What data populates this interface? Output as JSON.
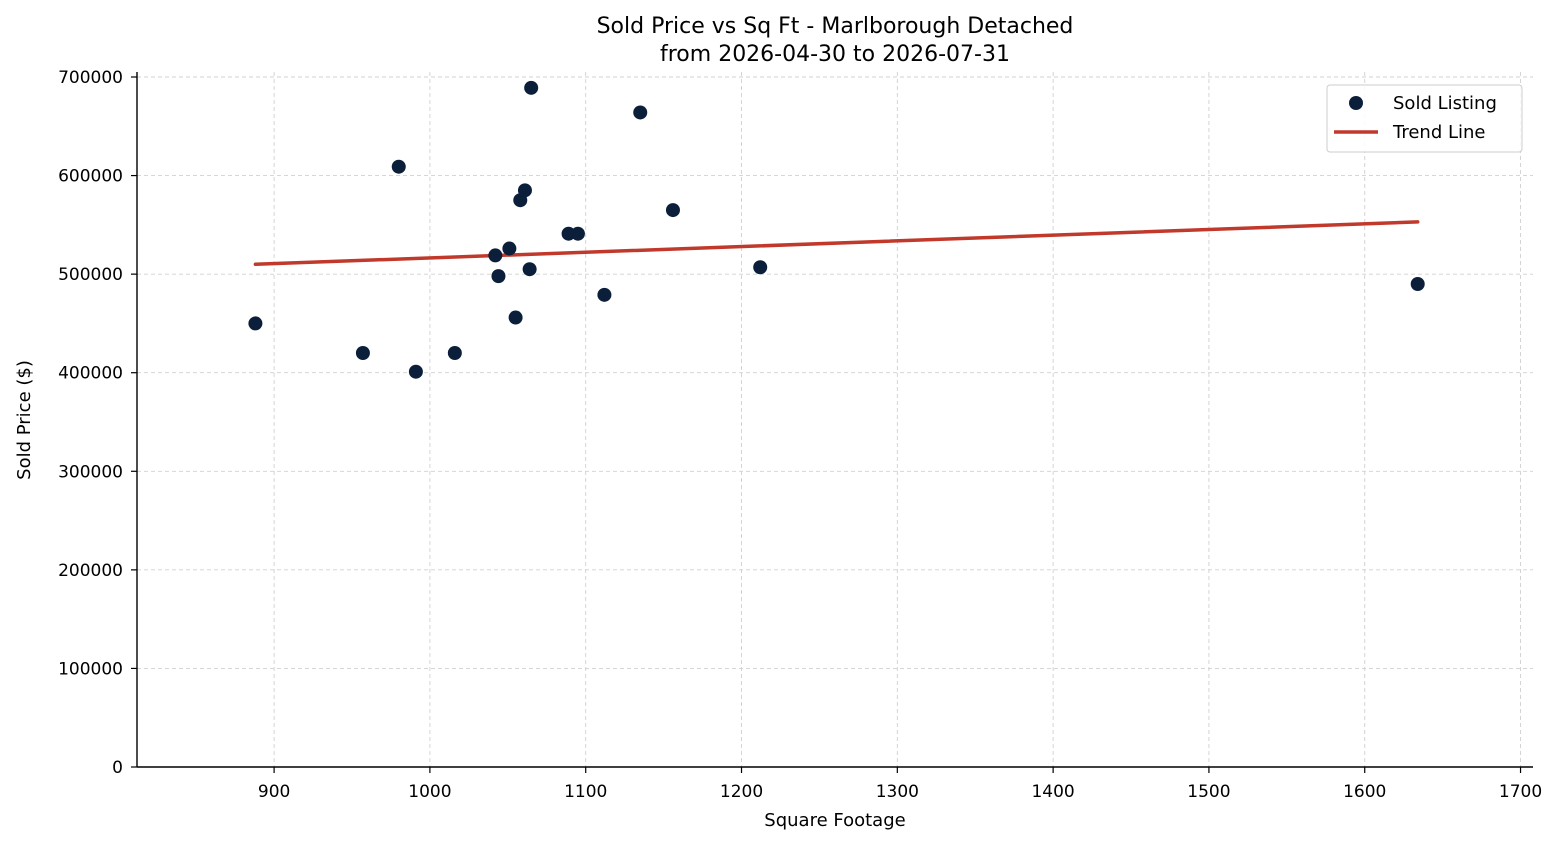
{
  "chart_data": {
    "type": "scatter",
    "title": "Sold Price vs Sq Ft - Marlborough Detached",
    "subtitle": "from 2026-04-30 to 2026-07-31",
    "xlabel": "Square Footage",
    "ylabel": "Sold Price ($)",
    "xlim": [
      812,
      1708
    ],
    "ylim": [
      0,
      700000
    ],
    "x_ticks": [
      900,
      1000,
      1100,
      1200,
      1300,
      1400,
      1500,
      1600,
      1700
    ],
    "y_ticks": [
      0,
      100000,
      200000,
      300000,
      400000,
      500000,
      600000,
      700000
    ],
    "x_tick_labels": [
      "900",
      "1000",
      "1100",
      "1200",
      "1300",
      "1400",
      "1500",
      "1600",
      "1700"
    ],
    "y_tick_labels": [
      "0",
      "100000",
      "200000",
      "300000",
      "400000",
      "500000",
      "600000",
      "700000"
    ],
    "grid": true,
    "legend_position": "top-right",
    "series": [
      {
        "name": "Sold Listing",
        "kind": "scatter",
        "color": "#0b1f3a",
        "points": [
          {
            "x": 888,
            "y": 450000
          },
          {
            "x": 957,
            "y": 420000
          },
          {
            "x": 980,
            "y": 609000
          },
          {
            "x": 991,
            "y": 401000
          },
          {
            "x": 1016,
            "y": 420000
          },
          {
            "x": 1042,
            "y": 519000
          },
          {
            "x": 1044,
            "y": 498000
          },
          {
            "x": 1051,
            "y": 526000
          },
          {
            "x": 1055,
            "y": 456000
          },
          {
            "x": 1058,
            "y": 575000
          },
          {
            "x": 1061,
            "y": 585000
          },
          {
            "x": 1064,
            "y": 505000
          },
          {
            "x": 1065,
            "y": 689000
          },
          {
            "x": 1089,
            "y": 541000
          },
          {
            "x": 1095,
            "y": 541000
          },
          {
            "x": 1112,
            "y": 479000
          },
          {
            "x": 1135,
            "y": 664000
          },
          {
            "x": 1156,
            "y": 565000
          },
          {
            "x": 1212,
            "y": 507000
          },
          {
            "x": 1634,
            "y": 490000
          }
        ]
      },
      {
        "name": "Trend Line",
        "kind": "line",
        "color": "#c0392b",
        "points": [
          {
            "x": 888,
            "y": 510000
          },
          {
            "x": 1634,
            "y": 553000
          }
        ]
      }
    ]
  }
}
